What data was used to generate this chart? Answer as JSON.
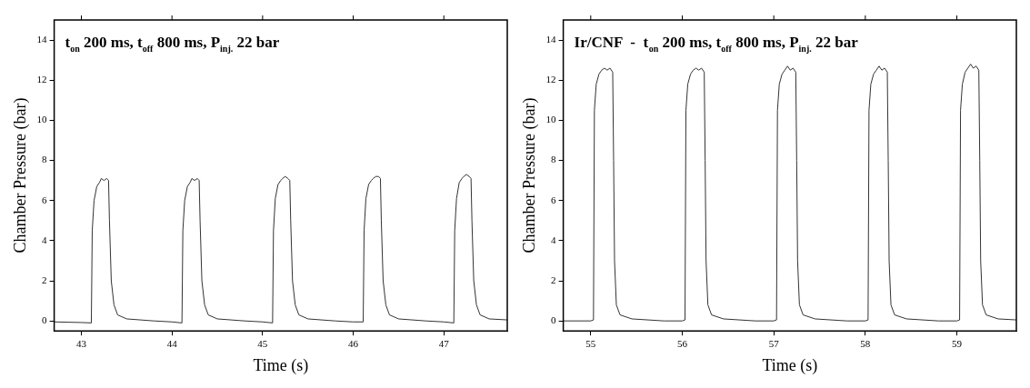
{
  "chart_data": [
    {
      "type": "line",
      "title": "t$_{on}$ 200 ms, t$_{off}$ 800 ms, P$_{inj.}$ 22 bar",
      "xlabel": "Time (s)",
      "ylabel": "Chamber Pressure (bar)",
      "xlim": [
        42.7,
        47.7
      ],
      "ylim": [
        -0.5,
        15
      ],
      "xticks": [
        43,
        44,
        45,
        46,
        47
      ],
      "yticks": [
        0,
        2,
        4,
        6,
        8,
        10,
        12,
        14
      ],
      "grid": false,
      "marker": "none",
      "line_style": "solid",
      "series": [
        {
          "color": "#333333",
          "x": [
            42.7,
            43.0,
            43.11,
            43.12,
            43.14,
            43.17,
            43.2,
            43.22,
            43.25,
            43.28,
            43.3,
            43.31,
            43.33,
            43.36,
            43.4,
            43.5,
            43.8,
            44.0,
            44.11,
            44.12,
            44.14,
            44.17,
            44.2,
            44.22,
            44.25,
            44.28,
            44.3,
            44.31,
            44.33,
            44.36,
            44.4,
            44.5,
            44.8,
            45.0,
            45.11,
            45.12,
            45.14,
            45.17,
            45.2,
            45.22,
            45.25,
            45.28,
            45.3,
            45.31,
            45.33,
            45.36,
            45.4,
            45.5,
            45.8,
            46.0,
            46.11,
            46.12,
            46.14,
            46.17,
            46.2,
            46.22,
            46.25,
            46.28,
            46.3,
            46.31,
            46.33,
            46.36,
            46.4,
            46.5,
            46.8,
            47.0,
            47.11,
            47.12,
            47.14,
            47.17,
            47.2,
            47.22,
            47.25,
            47.28,
            47.3,
            47.31,
            47.33,
            47.36,
            47.4,
            47.5,
            47.7
          ],
          "values": [
            -0.05,
            -0.08,
            -0.1,
            4.5,
            6.0,
            6.7,
            6.9,
            7.1,
            7.0,
            7.1,
            7.0,
            5.0,
            2.0,
            0.8,
            0.3,
            0.1,
            0.0,
            -0.05,
            -0.1,
            4.5,
            6.0,
            6.7,
            6.9,
            7.1,
            7.0,
            7.1,
            7.0,
            5.0,
            2.0,
            0.8,
            0.3,
            0.1,
            0.0,
            -0.05,
            -0.1,
            4.5,
            6.1,
            6.8,
            7.0,
            7.1,
            7.2,
            7.1,
            7.0,
            5.0,
            2.0,
            0.8,
            0.3,
            0.1,
            0.0,
            -0.05,
            -0.05,
            4.5,
            6.1,
            6.8,
            7.0,
            7.1,
            7.2,
            7.2,
            7.1,
            5.0,
            2.0,
            0.8,
            0.3,
            0.1,
            0.0,
            -0.05,
            -0.1,
            4.5,
            6.1,
            6.9,
            7.1,
            7.2,
            7.3,
            7.2,
            7.1,
            5.0,
            2.0,
            0.8,
            0.3,
            0.1,
            0.05
          ]
        }
      ]
    },
    {
      "type": "line",
      "title": "Ir/CNF  -  t$_{on}$ 200 ms, t$_{off}$ 800 ms, P$_{inj.}$ 22 bar",
      "xlabel": "Time (s)",
      "ylabel": "Chamber Pressure (bar)",
      "xlim": [
        54.7,
        59.65
      ],
      "ylim": [
        -0.5,
        15
      ],
      "xticks": [
        55,
        56,
        57,
        58,
        59
      ],
      "yticks": [
        0,
        2,
        4,
        6,
        8,
        10,
        12,
        14
      ],
      "grid": false,
      "marker": "none",
      "line_style": "solid",
      "series": [
        {
          "color": "#333333",
          "x": [
            54.7,
            55.0,
            55.03,
            55.04,
            55.06,
            55.09,
            55.12,
            55.15,
            55.18,
            55.21,
            55.24,
            55.25,
            55.26,
            55.28,
            55.32,
            55.45,
            55.8,
            56.0,
            56.03,
            56.04,
            56.06,
            56.09,
            56.12,
            56.15,
            56.18,
            56.21,
            56.24,
            56.25,
            56.26,
            56.28,
            56.32,
            56.45,
            56.8,
            57.0,
            57.03,
            57.04,
            57.06,
            57.09,
            57.12,
            57.15,
            57.18,
            57.21,
            57.24,
            57.25,
            57.26,
            57.28,
            57.32,
            57.45,
            57.8,
            58.0,
            58.03,
            58.04,
            58.06,
            58.09,
            58.12,
            58.15,
            58.18,
            58.21,
            58.24,
            58.25,
            58.26,
            58.28,
            58.32,
            58.45,
            58.8,
            59.0,
            59.03,
            59.04,
            59.06,
            59.09,
            59.12,
            59.15,
            59.18,
            59.21,
            59.24,
            59.25,
            59.26,
            59.28,
            59.32,
            59.45,
            59.65
          ],
          "values": [
            0.0,
            0.0,
            0.05,
            10.5,
            11.8,
            12.3,
            12.5,
            12.6,
            12.5,
            12.6,
            12.4,
            8.0,
            3.0,
            0.8,
            0.3,
            0.1,
            0.0,
            0.0,
            0.05,
            10.5,
            11.8,
            12.3,
            12.5,
            12.6,
            12.5,
            12.6,
            12.4,
            8.0,
            3.0,
            0.8,
            0.3,
            0.1,
            0.0,
            0.0,
            0.05,
            10.5,
            11.8,
            12.3,
            12.5,
            12.7,
            12.5,
            12.6,
            12.4,
            8.0,
            3.0,
            0.8,
            0.3,
            0.1,
            0.0,
            0.0,
            0.05,
            10.5,
            11.8,
            12.3,
            12.5,
            12.7,
            12.5,
            12.6,
            12.4,
            8.0,
            3.0,
            0.8,
            0.3,
            0.1,
            0.0,
            0.0,
            0.05,
            10.5,
            11.8,
            12.4,
            12.6,
            12.8,
            12.6,
            12.7,
            12.5,
            8.0,
            3.0,
            0.8,
            0.3,
            0.1,
            0.05
          ]
        }
      ]
    }
  ]
}
